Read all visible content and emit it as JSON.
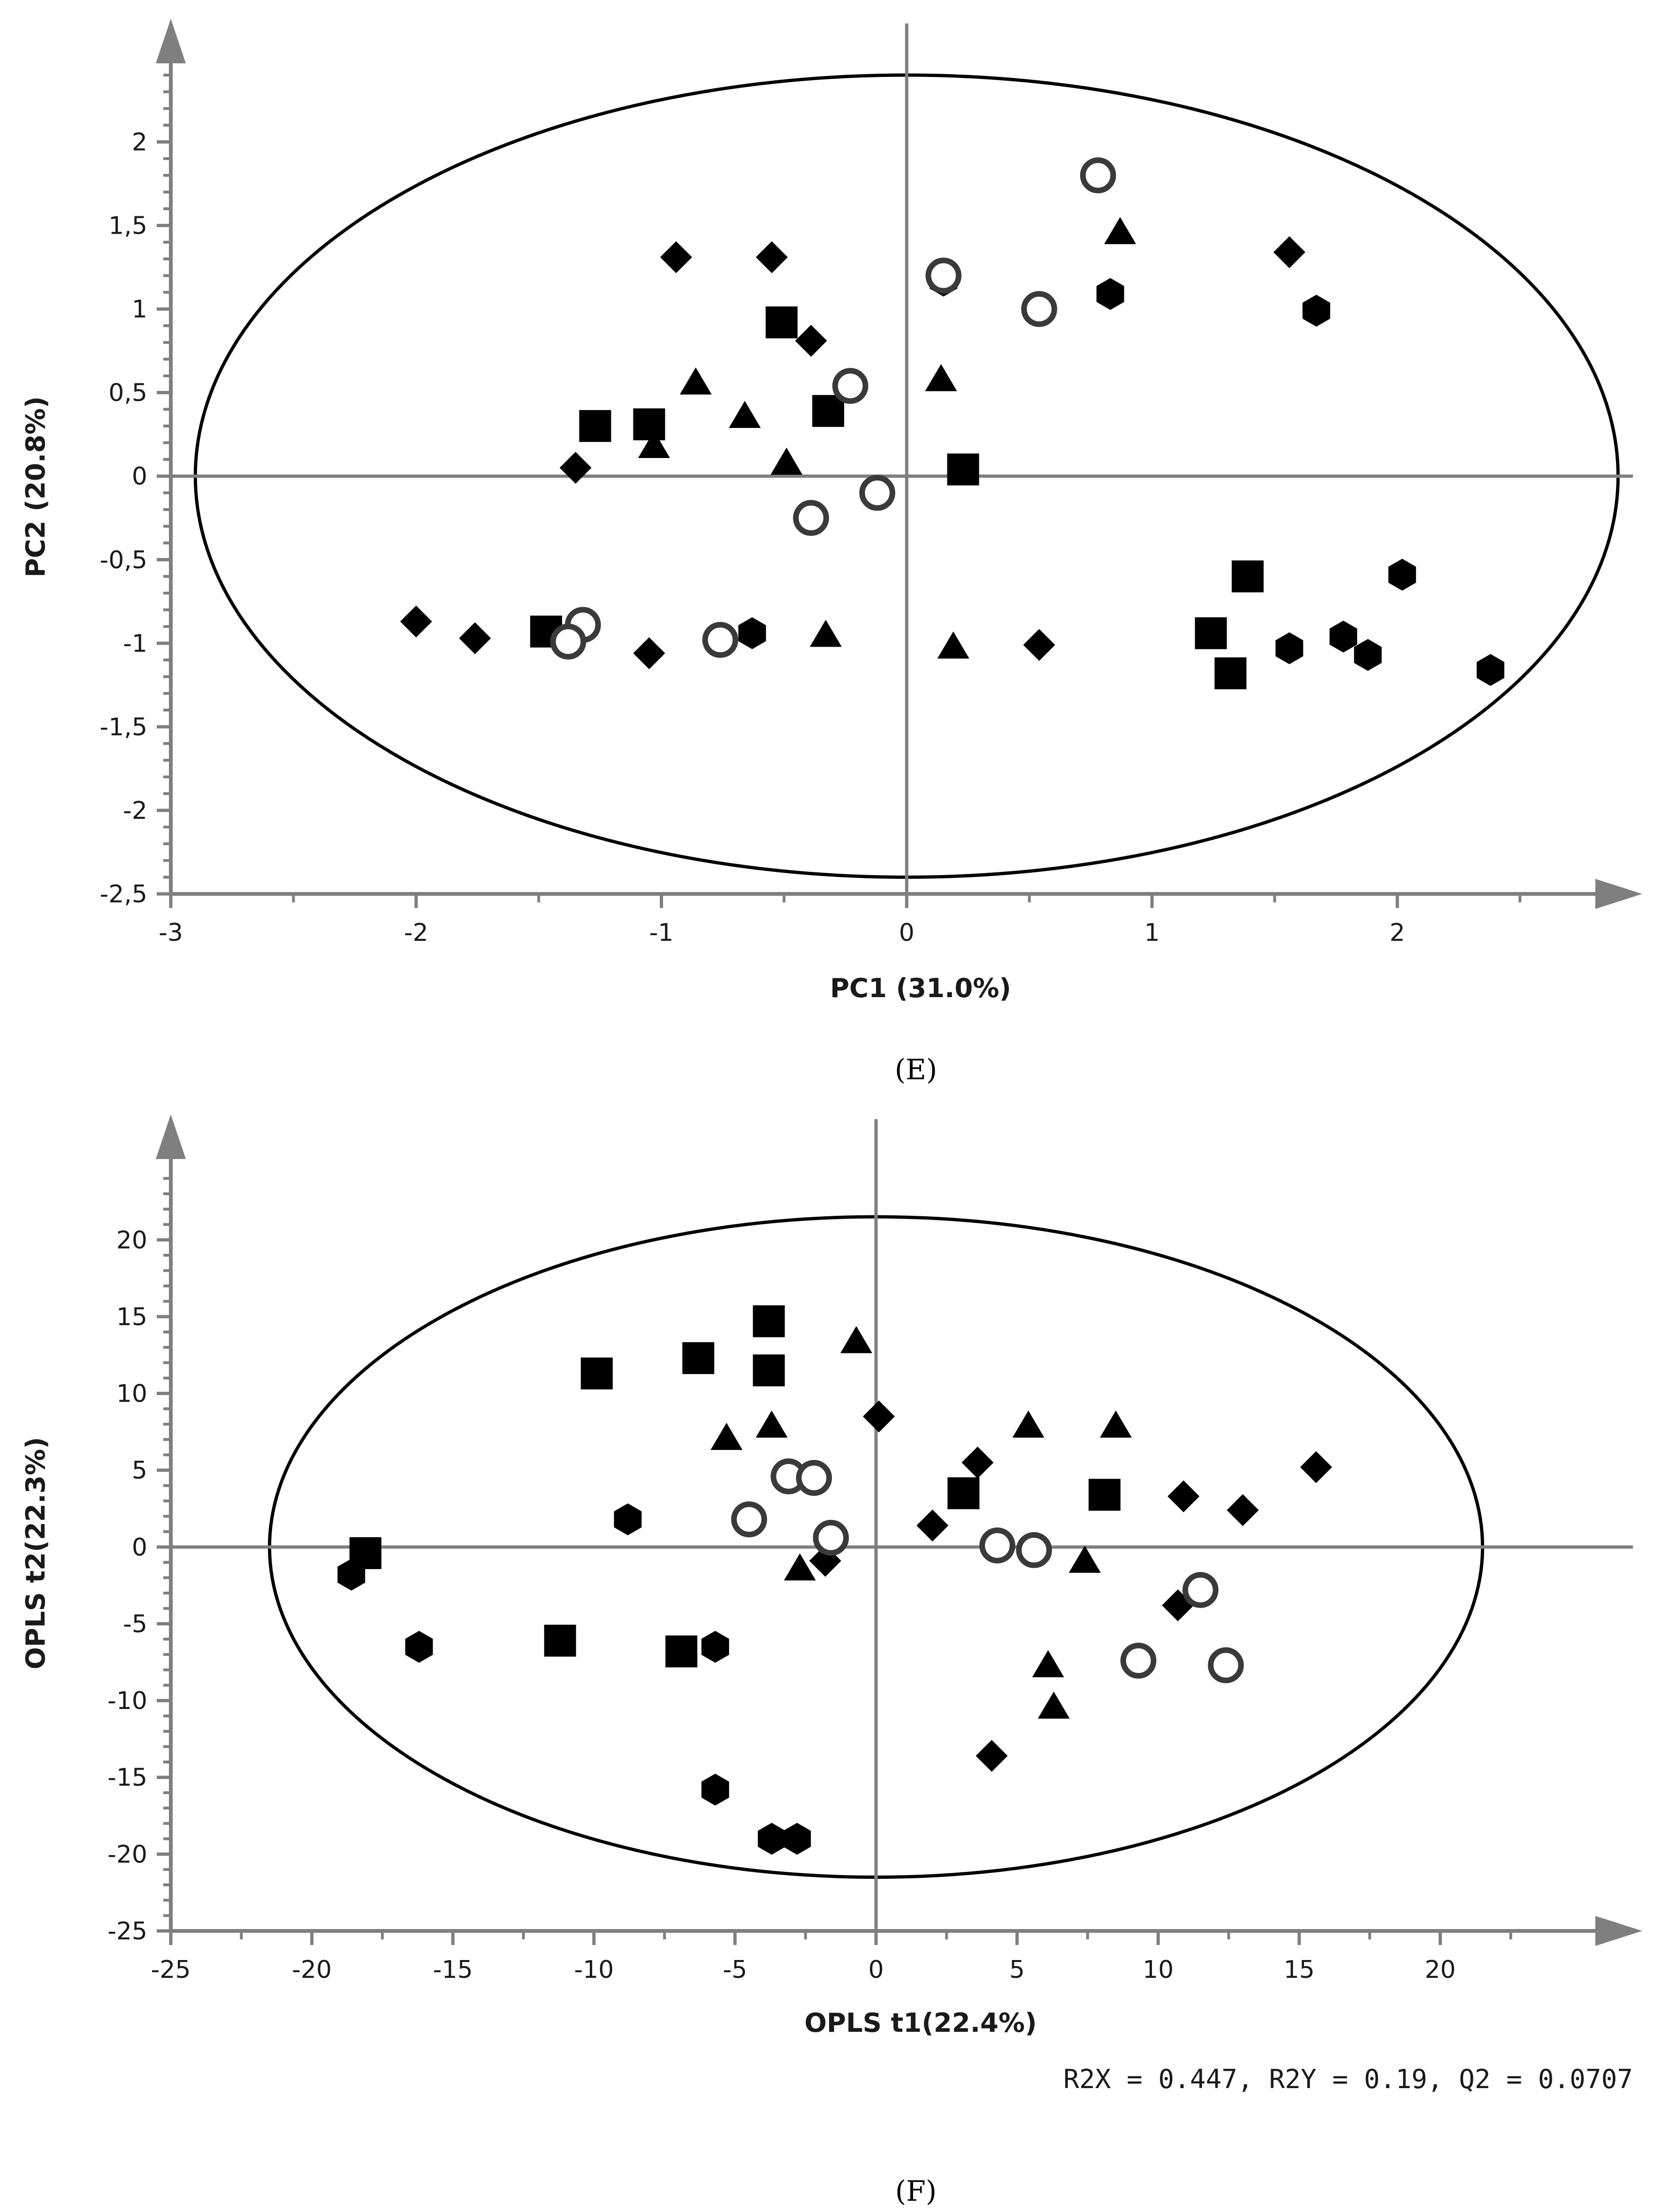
{
  "colors": {
    "axis": "#7f7f7f",
    "marker": "#000000",
    "ellipse": "#000000",
    "circle_stroke": "#3a3a3a"
  },
  "marker_legend": [
    "square",
    "triangle",
    "diamond",
    "hexagon",
    "circle"
  ],
  "chart_data": [
    {
      "type": "scatter",
      "caption": "(E)",
      "xlabel": "PC1 (31.0%)",
      "ylabel": "PC2 (20.8%)",
      "xlim": [
        -3,
        2.75
      ],
      "ylim": [
        -2.5,
        2.4
      ],
      "xticks": [
        -3,
        -2,
        -1,
        0,
        1,
        2
      ],
      "xtick_labels": [
        "-3",
        "-2",
        "-1",
        "0",
        "1",
        "2"
      ],
      "yticks": [
        -2.5,
        -2,
        -1.5,
        -1,
        -0.5,
        0,
        0.5,
        1,
        1.5,
        2
      ],
      "ytick_labels": [
        "-2,5",
        "-2",
        "-1,5",
        "-1",
        "-0,5",
        "0",
        "0,5",
        "1",
        "1,5",
        "2"
      ],
      "ellipse": {
        "center": [
          0,
          0
        ],
        "radii": [
          2.9,
          2.4
        ]
      },
      "series": [
        {
          "name": "square",
          "points": [
            [
              -0.51,
              0.92
            ],
            [
              -1.27,
              0.3
            ],
            [
              -1.05,
              0.31
            ],
            [
              -0.32,
              0.39
            ],
            [
              0.23,
              0.04
            ],
            [
              -1.47,
              -0.93
            ],
            [
              1.39,
              -0.6
            ],
            [
              1.24,
              -0.94
            ],
            [
              1.32,
              -1.18
            ]
          ]
        },
        {
          "name": "triangle",
          "points": [
            [
              0.87,
              1.46
            ],
            [
              -0.86,
              0.56
            ],
            [
              -0.66,
              0.36
            ],
            [
              0.14,
              0.58
            ],
            [
              -1.03,
              0.18
            ],
            [
              -0.49,
              0.08
            ],
            [
              -0.33,
              -0.95
            ],
            [
              0.19,
              -1.02
            ]
          ]
        },
        {
          "name": "diamond",
          "points": [
            [
              -0.94,
              1.31
            ],
            [
              -0.55,
              1.31
            ],
            [
              -0.39,
              0.81
            ],
            [
              1.56,
              1.34
            ],
            [
              -1.35,
              0.05
            ],
            [
              -2.0,
              -0.87
            ],
            [
              -1.76,
              -0.97
            ],
            [
              -1.05,
              -1.06
            ],
            [
              0.54,
              -1.01
            ]
          ]
        },
        {
          "name": "hexagon",
          "points": [
            [
              0.15,
              1.17
            ],
            [
              0.83,
              1.09
            ],
            [
              1.67,
              0.99
            ],
            [
              -0.63,
              -0.94
            ],
            [
              2.02,
              -0.59
            ],
            [
              1.56,
              -1.03
            ],
            [
              1.78,
              -0.96
            ],
            [
              1.88,
              -1.07
            ],
            [
              2.38,
              -1.16
            ]
          ]
        },
        {
          "name": "circle",
          "points": [
            [
              0.78,
              1.8
            ],
            [
              0.15,
              1.2
            ],
            [
              0.54,
              1.0
            ],
            [
              -0.23,
              0.54
            ],
            [
              -0.12,
              -0.1
            ],
            [
              -0.39,
              -0.25
            ],
            [
              -1.32,
              -0.89
            ],
            [
              -1.38,
              -0.99
            ],
            [
              -0.76,
              -0.98
            ]
          ]
        }
      ]
    },
    {
      "type": "scatter",
      "caption": "(F)",
      "xlabel": "OPLS t1(22.4%)",
      "ylabel": "OPLS t2(22.3%)",
      "stats": "R2X = 0.447, R2Y = 0.19, Q2 = 0.0707",
      "xlim": [
        -25,
        25
      ],
      "ylim": [
        -25,
        24.5
      ],
      "xticks": [
        -25,
        -20,
        -15,
        -10,
        -5,
        0,
        5,
        10,
        15,
        20
      ],
      "xtick_labels": [
        "-25",
        "-20",
        "-15",
        "-10",
        "-5",
        "0",
        "5",
        "10",
        "15",
        "20"
      ],
      "yticks": [
        -25,
        -20,
        -15,
        -10,
        -5,
        0,
        5,
        10,
        15,
        20
      ],
      "ytick_labels": [
        "-25",
        "-20",
        "-15",
        "-10",
        "-5",
        "0",
        "5",
        "10",
        "15",
        "20"
      ],
      "ellipse": {
        "center": [
          0,
          0
        ],
        "radii": [
          21.5,
          21.5
        ]
      },
      "series": [
        {
          "name": "square",
          "points": [
            [
              -3.8,
              14.7
            ],
            [
              -6.3,
              12.3
            ],
            [
              -3.8,
              11.5
            ],
            [
              -9.9,
              11.3
            ],
            [
              3.1,
              3.5
            ],
            [
              8.1,
              3.4
            ],
            [
              -18.1,
              -0.4
            ],
            [
              -11.2,
              -6.1
            ],
            [
              -6.9,
              -6.8
            ]
          ]
        },
        {
          "name": "triangle",
          "points": [
            [
              -0.7,
              13.4
            ],
            [
              -3.7,
              7.9
            ],
            [
              -5.3,
              7.1
            ],
            [
              5.4,
              7.9
            ],
            [
              8.5,
              7.9
            ],
            [
              -2.7,
              -1.4
            ],
            [
              7.4,
              -0.9
            ],
            [
              6.1,
              -7.7
            ],
            [
              6.3,
              -10.4
            ]
          ]
        },
        {
          "name": "diamond",
          "points": [
            [
              0.1,
              8.5
            ],
            [
              3.6,
              5.5
            ],
            [
              15.6,
              5.2
            ],
            [
              10.9,
              3.3
            ],
            [
              13.0,
              2.4
            ],
            [
              2.0,
              1.4
            ],
            [
              -1.8,
              -0.9
            ],
            [
              10.7,
              -3.8
            ],
            [
              4.1,
              -13.6
            ]
          ]
        },
        {
          "name": "hexagon",
          "points": [
            [
              -8.8,
              1.8
            ],
            [
              -18.6,
              -1.8
            ],
            [
              -16.2,
              -6.5
            ],
            [
              -5.7,
              -6.5
            ],
            [
              -5.7,
              -15.8
            ],
            [
              -3.7,
              -19.0
            ],
            [
              -2.8,
              -19.0
            ]
          ]
        },
        {
          "name": "circle",
          "points": [
            [
              -3.1,
              4.6
            ],
            [
              -2.2,
              4.5
            ],
            [
              -4.5,
              1.8
            ],
            [
              -1.6,
              0.6
            ],
            [
              4.3,
              0.1
            ],
            [
              5.6,
              -0.2
            ],
            [
              11.5,
              -2.8
            ],
            [
              9.3,
              -7.4
            ],
            [
              12.4,
              -7.7
            ]
          ]
        }
      ]
    }
  ]
}
